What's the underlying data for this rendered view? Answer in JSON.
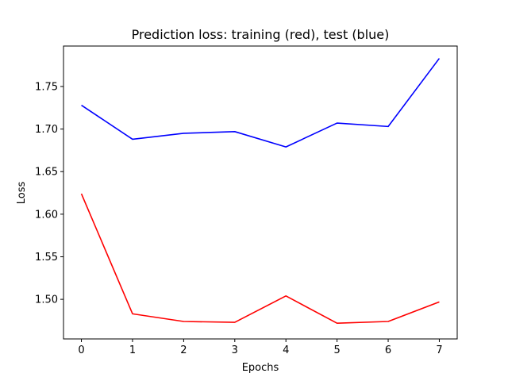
{
  "chart_data": {
    "type": "line",
    "title": "Prediction loss: training (red), test (blue)",
    "xlabel": "Epochs",
    "ylabel": "Loss",
    "x": [
      0,
      1,
      2,
      3,
      4,
      5,
      6,
      7
    ],
    "xlim": [
      -0.35,
      7.35
    ],
    "ylim": [
      1.4535,
      1.7975
    ],
    "xticks": [
      0,
      1,
      2,
      3,
      4,
      5,
      6,
      7
    ],
    "yticks": [
      1.5,
      1.55,
      1.6,
      1.65,
      1.7,
      1.75
    ],
    "ytick_labels": [
      "1.50",
      "1.55",
      "1.60",
      "1.65",
      "1.70",
      "1.75"
    ],
    "grid": false,
    "series": [
      {
        "color": "#0000ff",
        "values": [
          1.728,
          1.688,
          1.695,
          1.697,
          1.679,
          1.707,
          1.703,
          1.783
        ]
      },
      {
        "color": "#ff0000",
        "values": [
          1.624,
          1.483,
          1.474,
          1.473,
          1.504,
          1.472,
          1.474,
          1.497
        ]
      }
    ]
  }
}
